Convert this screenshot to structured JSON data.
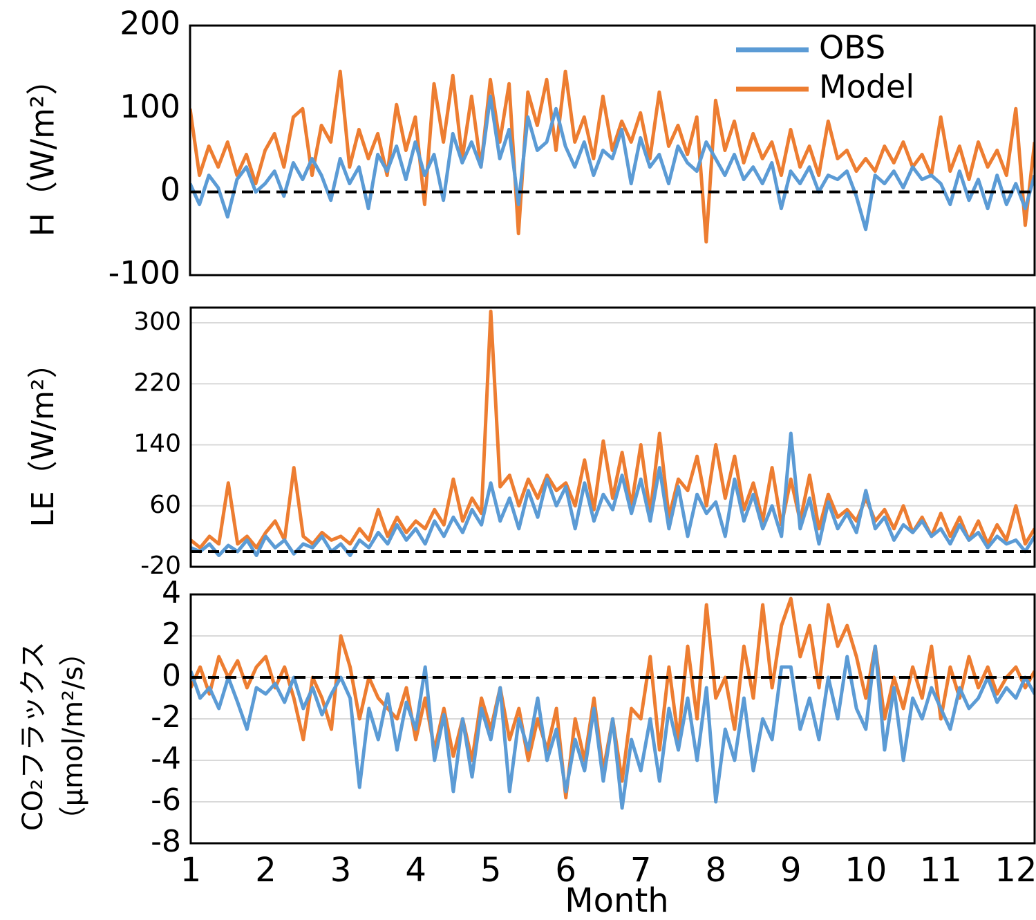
{
  "chart_data": [
    {
      "type": "line",
      "ylabel": "H（W/m²）",
      "xlim": [
        1,
        12.25
      ],
      "ylim": [
        -100,
        200
      ],
      "yticks": [
        -100,
        0,
        100,
        200
      ],
      "grid": false,
      "reference_line": 0,
      "legend": "upper right",
      "x": [
        1,
        1.125,
        1.25,
        1.375,
        1.5,
        1.625,
        1.75,
        1.875,
        2,
        2.125,
        2.25,
        2.375,
        2.5,
        2.625,
        2.75,
        2.875,
        3,
        3.125,
        3.25,
        3.375,
        3.5,
        3.625,
        3.75,
        3.875,
        4,
        4.125,
        4.25,
        4.375,
        4.5,
        4.625,
        4.75,
        4.875,
        5,
        5.125,
        5.25,
        5.375,
        5.5,
        5.625,
        5.75,
        5.875,
        6,
        6.125,
        6.25,
        6.375,
        6.5,
        6.625,
        6.75,
        6.875,
        7,
        7.125,
        7.25,
        7.375,
        7.5,
        7.625,
        7.75,
        7.875,
        8,
        8.125,
        8.25,
        8.375,
        8.5,
        8.625,
        8.75,
        8.875,
        9,
        9.125,
        9.25,
        9.375,
        9.5,
        9.625,
        9.75,
        9.875,
        10,
        10.125,
        10.25,
        10.375,
        10.5,
        10.625,
        10.75,
        10.875,
        11,
        11.125,
        11.25,
        11.375,
        11.5,
        11.625,
        11.75,
        11.875,
        12,
        12.125,
        12.25
      ],
      "series": [
        {
          "name": "OBS",
          "color": "#5b9bd5",
          "values": [
            10,
            -15,
            20,
            5,
            -30,
            15,
            30,
            0,
            10,
            25,
            -5,
            35,
            15,
            40,
            20,
            -10,
            40,
            10,
            30,
            -20,
            45,
            25,
            55,
            15,
            60,
            20,
            45,
            -10,
            70,
            35,
            60,
            30,
            115,
            40,
            75,
            -15,
            90,
            50,
            60,
            100,
            55,
            30,
            60,
            20,
            50,
            40,
            75,
            10,
            65,
            30,
            45,
            10,
            55,
            35,
            25,
            60,
            40,
            20,
            45,
            15,
            30,
            10,
            35,
            -20,
            25,
            10,
            30,
            0,
            20,
            15,
            25,
            -5,
            -45,
            20,
            10,
            25,
            5,
            30,
            15,
            20,
            10,
            -15,
            25,
            -10,
            15,
            -20,
            20,
            -15,
            10,
            -20,
            20
          ]
        },
        {
          "name": "Model",
          "color": "#ed7d31",
          "values": [
            100,
            20,
            55,
            30,
            60,
            20,
            45,
            10,
            50,
            70,
            30,
            90,
            100,
            20,
            80,
            60,
            145,
            30,
            75,
            40,
            70,
            20,
            105,
            50,
            90,
            -15,
            130,
            60,
            140,
            40,
            115,
            30,
            135,
            60,
            130,
            -50,
            120,
            80,
            135,
            50,
            145,
            60,
            90,
            40,
            115,
            50,
            85,
            60,
            95,
            40,
            120,
            55,
            80,
            45,
            90,
            -60,
            110,
            50,
            85,
            35,
            70,
            40,
            60,
            20,
            75,
            30,
            55,
            20,
            85,
            40,
            50,
            25,
            40,
            25,
            55,
            35,
            60,
            30,
            45,
            20,
            90,
            25,
            55,
            15,
            60,
            30,
            50,
            20,
            100,
            -40,
            60
          ]
        }
      ]
    },
    {
      "type": "line",
      "ylabel": "LE（W/m²）",
      "xlim": [
        1,
        12.25
      ],
      "ylim": [
        -20,
        320
      ],
      "yticks": [
        -20,
        60,
        140,
        220,
        300
      ],
      "grid": true,
      "reference_line": 0,
      "x": [
        1,
        1.125,
        1.25,
        1.375,
        1.5,
        1.625,
        1.75,
        1.875,
        2,
        2.125,
        2.25,
        2.375,
        2.5,
        2.625,
        2.75,
        2.875,
        3,
        3.125,
        3.25,
        3.375,
        3.5,
        3.625,
        3.75,
        3.875,
        4,
        4.125,
        4.25,
        4.375,
        4.5,
        4.625,
        4.75,
        4.875,
        5,
        5.125,
        5.25,
        5.375,
        5.5,
        5.625,
        5.75,
        5.875,
        6,
        6.125,
        6.25,
        6.375,
        6.5,
        6.625,
        6.75,
        6.875,
        7,
        7.125,
        7.25,
        7.375,
        7.5,
        7.625,
        7.75,
        7.875,
        8,
        8.125,
        8.25,
        8.375,
        8.5,
        8.625,
        8.75,
        8.875,
        9,
        9.125,
        9.25,
        9.375,
        9.5,
        9.625,
        9.75,
        9.875,
        10,
        10.125,
        10.25,
        10.375,
        10.5,
        10.625,
        10.75,
        10.875,
        11,
        11.125,
        11.25,
        11.375,
        11.5,
        11.625,
        11.75,
        11.875,
        12,
        12.125,
        12.25
      ],
      "series": [
        {
          "name": "OBS",
          "color": "#5b9bd5",
          "values": [
            5,
            0,
            10,
            -5,
            8,
            0,
            15,
            -5,
            20,
            5,
            15,
            -3,
            10,
            5,
            20,
            0,
            10,
            -5,
            15,
            5,
            25,
            10,
            35,
            15,
            30,
            10,
            40,
            20,
            45,
            25,
            55,
            35,
            90,
            40,
            70,
            30,
            80,
            45,
            95,
            60,
            85,
            30,
            90,
            40,
            75,
            55,
            100,
            50,
            95,
            40,
            110,
            30,
            85,
            20,
            75,
            50,
            65,
            20,
            95,
            40,
            75,
            30,
            60,
            20,
            155,
            30,
            70,
            10,
            65,
            30,
            50,
            25,
            80,
            30,
            45,
            15,
            35,
            25,
            40,
            20,
            30,
            10,
            35,
            15,
            25,
            5,
            20,
            10,
            15,
            0,
            20
          ]
        },
        {
          "name": "Model",
          "color": "#ed7d31",
          "values": [
            15,
            5,
            20,
            10,
            90,
            10,
            20,
            5,
            25,
            40,
            15,
            110,
            20,
            10,
            25,
            15,
            20,
            10,
            30,
            15,
            55,
            20,
            45,
            25,
            40,
            30,
            55,
            35,
            95,
            40,
            70,
            50,
            315,
            85,
            100,
            60,
            95,
            70,
            100,
            80,
            90,
            60,
            120,
            55,
            145,
            70,
            130,
            60,
            140,
            50,
            155,
            45,
            95,
            80,
            125,
            60,
            140,
            70,
            125,
            55,
            90,
            40,
            110,
            35,
            95,
            40,
            100,
            30,
            75,
            45,
            55,
            40,
            70,
            40,
            55,
            30,
            60,
            25,
            45,
            20,
            50,
            20,
            45,
            15,
            40,
            10,
            35,
            15,
            60,
            10,
            30
          ]
        }
      ]
    },
    {
      "type": "line",
      "ylabel": [
        "CO₂フラックス",
        "（μmol/m²/s）"
      ],
      "xlabel": "Month",
      "xlim": [
        1,
        12.25
      ],
      "xticks": [
        1,
        2,
        3,
        4,
        5,
        6,
        7,
        8,
        9,
        10,
        11,
        12
      ],
      "ylim": [
        -8,
        4
      ],
      "yticks": [
        -8,
        -6,
        -4,
        -2,
        0,
        2,
        4
      ],
      "grid": true,
      "reference_line": 0,
      "x": [
        1,
        1.125,
        1.25,
        1.375,
        1.5,
        1.625,
        1.75,
        1.875,
        2,
        2.125,
        2.25,
        2.375,
        2.5,
        2.625,
        2.75,
        2.875,
        3,
        3.125,
        3.25,
        3.375,
        3.5,
        3.625,
        3.75,
        3.875,
        4,
        4.125,
        4.25,
        4.375,
        4.5,
        4.625,
        4.75,
        4.875,
        5,
        5.125,
        5.25,
        5.375,
        5.5,
        5.625,
        5.75,
        5.875,
        6,
        6.125,
        6.25,
        6.375,
        6.5,
        6.625,
        6.75,
        6.875,
        7,
        7.125,
        7.25,
        7.375,
        7.5,
        7.625,
        7.75,
        7.875,
        8,
        8.125,
        8.25,
        8.375,
        8.5,
        8.625,
        8.75,
        8.875,
        9,
        9.125,
        9.25,
        9.375,
        9.5,
        9.625,
        9.75,
        9.875,
        10,
        10.125,
        10.25,
        10.375,
        10.5,
        10.625,
        10.75,
        10.875,
        11,
        11.125,
        11.25,
        11.375,
        11.5,
        11.625,
        11.75,
        11.875,
        12,
        12.125,
        12.25
      ],
      "series": [
        {
          "name": "OBS",
          "color": "#5b9bd5",
          "values": [
            0.3,
            -1,
            -0.5,
            -1.5,
            0,
            -1.2,
            -2.5,
            -0.5,
            -0.8,
            -0.3,
            -1.2,
            0,
            -1.5,
            -0.5,
            -1.8,
            -0.8,
            0,
            -1,
            -5.3,
            -1.5,
            -3,
            -0.8,
            -3.5,
            -1.2,
            -2.5,
            0.5,
            -4,
            -1.8,
            -5.5,
            -2,
            -4.8,
            -1.5,
            -3,
            -0.5,
            -5.5,
            -2,
            -3.5,
            -1,
            -4,
            -2.5,
            -5.5,
            -3,
            -4.5,
            -1.5,
            -5,
            -2,
            -6.3,
            -3,
            -4.5,
            -2,
            -5,
            -1.5,
            -3.5,
            -1,
            -4,
            -0.5,
            -6,
            -2.5,
            -4,
            -1,
            -4.5,
            -2,
            -3,
            0.5,
            0.5,
            -2.5,
            -1,
            -3,
            0,
            -2,
            1,
            -1.5,
            -2.5,
            1.5,
            -3.5,
            -0.5,
            -4,
            -1,
            -2,
            -0.5,
            -1.5,
            -2.5,
            -0.5,
            -1.5,
            -1,
            0,
            -1.2,
            -0.5,
            -1,
            0,
            -0.8
          ]
        },
        {
          "name": "Model",
          "color": "#ed7d31",
          "values": [
            -0.5,
            0.5,
            -0.8,
            1,
            0,
            0.8,
            -0.5,
            0.5,
            1,
            -0.5,
            0.5,
            -1,
            -3,
            0,
            -1,
            -2.5,
            2,
            0.5,
            -2,
            0,
            -1,
            -1.5,
            -2,
            -0.5,
            -3,
            -1,
            -3.5,
            -1.5,
            -3.8,
            -2,
            -4,
            -1,
            -2.5,
            -0.5,
            -3,
            -1.5,
            -4,
            -2,
            -3.5,
            -1.5,
            -5.8,
            -2,
            -4,
            -1,
            -4.5,
            -2,
            -5,
            -1.5,
            -2,
            1,
            -3.5,
            0.5,
            -3,
            1.5,
            -2,
            3.5,
            -1,
            0,
            -2.5,
            1.5,
            -1,
            3.5,
            -0.5,
            2.5,
            3.8,
            1,
            2.5,
            -0.5,
            3.5,
            1.5,
            2.5,
            1,
            -1,
            1.5,
            -2,
            0,
            -1.5,
            0.5,
            -1,
            1.5,
            -2,
            0.5,
            -1,
            1,
            -0.5,
            0.5,
            -0.8,
            0,
            0.5,
            -0.5,
            0.3
          ]
        }
      ]
    }
  ]
}
